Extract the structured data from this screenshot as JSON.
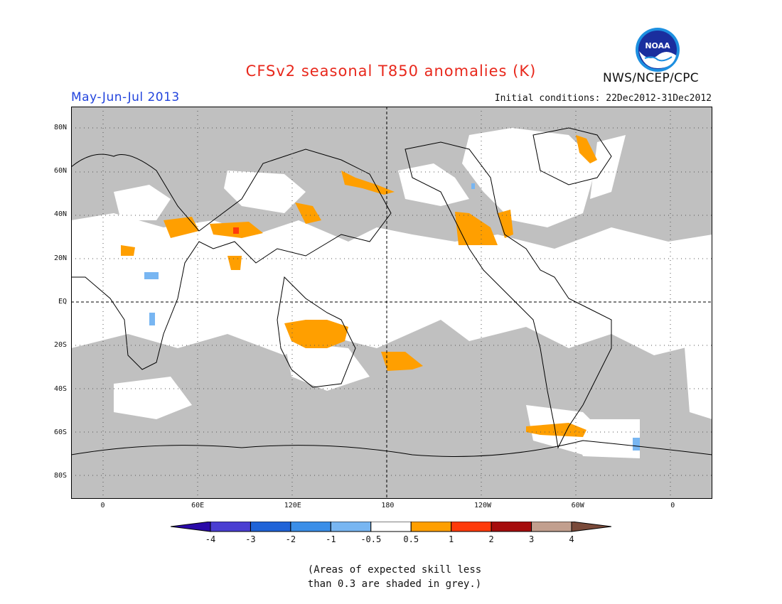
{
  "header": {
    "title": "CFSv2 seasonal T850 anomalies (K)",
    "period": "May-Jun-Jul 2013",
    "initial_conditions": "Initial conditions: 22Dec2012-31Dec2012",
    "agency": "NWS/NCEP/CPC",
    "logo_text": "NOAA"
  },
  "map": {
    "lat_labels": [
      "80N",
      "60N",
      "40N",
      "20N",
      "EQ",
      "20S",
      "40S",
      "60S",
      "80S"
    ],
    "lon_labels": [
      "0",
      "60E",
      "120E",
      "180",
      "120W",
      "60W",
      "0"
    ],
    "lat_values": [
      80,
      60,
      40,
      20,
      0,
      -20,
      -40,
      -60,
      -80
    ],
    "lon_values": [
      0,
      60,
      120,
      180,
      240,
      300,
      360
    ],
    "lon_range": [
      -20,
      385
    ],
    "lat_range": [
      -90,
      90
    ],
    "colors": {
      "land_line": "#000000",
      "skill_grey": "#c0c0c0",
      "ocean_white": "#ffffff"
    }
  },
  "colorbar": {
    "labels": [
      "-4",
      "-3",
      "-2",
      "-1",
      "-0.5",
      "0.5",
      "1",
      "2",
      "3",
      "4"
    ],
    "bins": [
      {
        "color": "#2a0aa8"
      },
      {
        "color": "#4a3ed2"
      },
      {
        "color": "#1f63d8"
      },
      {
        "color": "#3a8ee8"
      },
      {
        "color": "#78b6f2"
      },
      {
        "color": "#ffffff"
      },
      {
        "color": "#ff9f00"
      },
      {
        "color": "#ff3a0a"
      },
      {
        "color": "#a60c0c"
      },
      {
        "color": "#c29f8e"
      },
      {
        "color": "#7a4a3a"
      }
    ]
  },
  "note": {
    "line1": "(Areas of expected skill less",
    "line2": "than 0.3 are shaded in grey.)"
  }
}
